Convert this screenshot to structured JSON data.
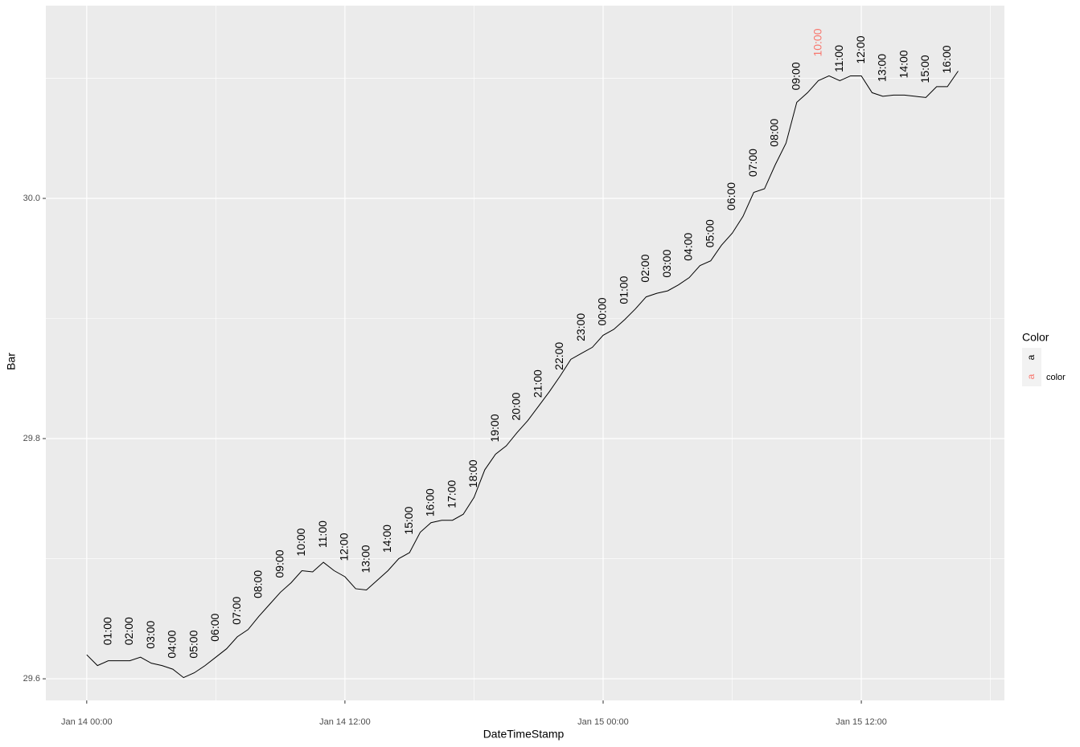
{
  "chart_data": {
    "type": "line",
    "x_label": "DateTimeStamp",
    "y_label": "Bar",
    "x": [
      "Jan 14 00:00",
      "Jan 14 00:30",
      "Jan 14 01:00",
      "Jan 14 01:30",
      "Jan 14 02:00",
      "Jan 14 02:30",
      "Jan 14 03:00",
      "Jan 14 03:30",
      "Jan 14 04:00",
      "Jan 14 04:30",
      "Jan 14 05:00",
      "Jan 14 05:30",
      "Jan 14 06:00",
      "Jan 14 06:30",
      "Jan 14 07:00",
      "Jan 14 07:30",
      "Jan 14 08:00",
      "Jan 14 08:30",
      "Jan 14 09:00",
      "Jan 14 09:30",
      "Jan 14 10:00",
      "Jan 14 10:30",
      "Jan 14 11:00",
      "Jan 14 11:30",
      "Jan 14 12:00",
      "Jan 14 12:30",
      "Jan 14 13:00",
      "Jan 14 13:30",
      "Jan 14 14:00",
      "Jan 14 14:30",
      "Jan 14 15:00",
      "Jan 14 15:30",
      "Jan 14 16:00",
      "Jan 14 16:30",
      "Jan 14 17:00",
      "Jan 14 17:30",
      "Jan 14 18:00",
      "Jan 14 18:30",
      "Jan 14 19:00",
      "Jan 14 19:30",
      "Jan 14 20:00",
      "Jan 14 20:30",
      "Jan 14 21:00",
      "Jan 14 21:30",
      "Jan 14 22:00",
      "Jan 14 22:30",
      "Jan 14 23:00",
      "Jan 14 23:30",
      "Jan 15 00:00",
      "Jan 15 00:30",
      "Jan 15 01:00",
      "Jan 15 01:30",
      "Jan 15 02:00",
      "Jan 15 02:30",
      "Jan 15 03:00",
      "Jan 15 03:30",
      "Jan 15 04:00",
      "Jan 15 04:30",
      "Jan 15 05:00",
      "Jan 15 05:30",
      "Jan 15 06:00",
      "Jan 15 06:30",
      "Jan 15 07:00",
      "Jan 15 07:30",
      "Jan 15 08:00",
      "Jan 15 08:30",
      "Jan 15 09:00",
      "Jan 15 09:30",
      "Jan 15 10:00",
      "Jan 15 10:30",
      "Jan 15 11:00",
      "Jan 15 11:30",
      "Jan 15 12:00",
      "Jan 15 12:30",
      "Jan 15 13:00",
      "Jan 15 13:30",
      "Jan 15 14:00",
      "Jan 15 14:30",
      "Jan 15 15:00",
      "Jan 15 15:30",
      "Jan 15 16:00",
      "Jan 15 16:30"
    ],
    "values": [
      29.62,
      29.611,
      29.615,
      29.615,
      29.615,
      29.618,
      29.613,
      29.611,
      29.608,
      29.601,
      29.605,
      29.611,
      29.618,
      29.625,
      29.635,
      29.641,
      29.652,
      29.662,
      29.672,
      29.68,
      29.69,
      29.689,
      29.697,
      29.69,
      29.685,
      29.675,
      29.674,
      29.682,
      29.69,
      29.7,
      29.705,
      29.722,
      29.73,
      29.732,
      29.732,
      29.737,
      29.751,
      29.774,
      29.787,
      29.794,
      29.805,
      29.815,
      29.827,
      29.839,
      29.852,
      29.866,
      29.871,
      29.876,
      29.886,
      29.891,
      29.899,
      29.908,
      29.918,
      29.921,
      29.923,
      29.928,
      29.934,
      29.944,
      29.948,
      29.961,
      29.971,
      29.985,
      30.005,
      30.008,
      30.028,
      30.046,
      30.08,
      30.088,
      30.098,
      30.102,
      30.098,
      30.102,
      30.102,
      30.088,
      30.085,
      30.086,
      30.086,
      30.085,
      30.084,
      30.093,
      30.093,
      30.106
    ],
    "color": "#000000",
    "xlim": [
      "Jan 13 22:06",
      "Jan 15 18:39"
    ],
    "xticks": [
      "Jan 14 00:00",
      "Jan 14 12:00",
      "Jan 15 00:00",
      "Jan 15 12:00"
    ],
    "ylim": [
      29.582,
      30.1605
    ],
    "yticks": [
      29.6,
      29.8,
      {
        "value": 30,
        "label": "30.0"
      }
    ],
    "grid": true,
    "annotations": [
      {
        "text": "01:00",
        "x": "Jan 14 01:00",
        "y": 29.628,
        "color": "#000000"
      },
      {
        "text": "02:00",
        "x": "Jan 14 02:00",
        "y": 29.628,
        "color": "#000000"
      },
      {
        "text": "03:00",
        "x": "Jan 14 03:00",
        "y": 29.625,
        "color": "#000000"
      },
      {
        "text": "04:00",
        "x": "Jan 14 04:00",
        "y": 29.617,
        "color": "#000000"
      },
      {
        "text": "05:00",
        "x": "Jan 14 05:00",
        "y": 29.617,
        "color": "#000000"
      },
      {
        "text": "06:00",
        "x": "Jan 14 06:00",
        "y": 29.631,
        "color": "#000000"
      },
      {
        "text": "07:00",
        "x": "Jan 14 07:00",
        "y": 29.645,
        "color": "#000000"
      },
      {
        "text": "08:00",
        "x": "Jan 14 08:00",
        "y": 29.667,
        "color": "#000000"
      },
      {
        "text": "09:00",
        "x": "Jan 14 09:00",
        "y": 29.684,
        "color": "#000000"
      },
      {
        "text": "10:00",
        "x": "Jan 14 10:00",
        "y": 29.702,
        "color": "#000000"
      },
      {
        "text": "11:00",
        "x": "Jan 14 11:00",
        "y": 29.709,
        "color": "#000000"
      },
      {
        "text": "12:00",
        "x": "Jan 14 12:00",
        "y": 29.698,
        "color": "#000000"
      },
      {
        "text": "13:00",
        "x": "Jan 14 13:00",
        "y": 29.688,
        "color": "#000000"
      },
      {
        "text": "14:00",
        "x": "Jan 14 14:00",
        "y": 29.705,
        "color": "#000000"
      },
      {
        "text": "15:00",
        "x": "Jan 14 15:00",
        "y": 29.72,
        "color": "#000000"
      },
      {
        "text": "16:00",
        "x": "Jan 14 16:00",
        "y": 29.735,
        "color": "#000000"
      },
      {
        "text": "17:00",
        "x": "Jan 14 17:00",
        "y": 29.742,
        "color": "#000000"
      },
      {
        "text": "18:00",
        "x": "Jan 14 18:00",
        "y": 29.759,
        "color": "#000000"
      },
      {
        "text": "19:00",
        "x": "Jan 14 19:00",
        "y": 29.797,
        "color": "#000000"
      },
      {
        "text": "20:00",
        "x": "Jan 14 20:00",
        "y": 29.815,
        "color": "#000000"
      },
      {
        "text": "21:00",
        "x": "Jan 14 21:00",
        "y": 29.834,
        "color": "#000000"
      },
      {
        "text": "22:00",
        "x": "Jan 14 22:00",
        "y": 29.857,
        "color": "#000000"
      },
      {
        "text": "23:00",
        "x": "Jan 14 23:00",
        "y": 29.881,
        "color": "#000000"
      },
      {
        "text": "00:00",
        "x": "Jan 15 00:00",
        "y": 29.894,
        "color": "#000000"
      },
      {
        "text": "01:00",
        "x": "Jan 15 01:00",
        "y": 29.912,
        "color": "#000000"
      },
      {
        "text": "02:00",
        "x": "Jan 15 02:00",
        "y": 29.93,
        "color": "#000000"
      },
      {
        "text": "03:00",
        "x": "Jan 15 03:00",
        "y": 29.934,
        "color": "#000000"
      },
      {
        "text": "04:00",
        "x": "Jan 15 04:00",
        "y": 29.948,
        "color": "#000000"
      },
      {
        "text": "05:00",
        "x": "Jan 15 05:00",
        "y": 29.959,
        "color": "#000000"
      },
      {
        "text": "06:00",
        "x": "Jan 15 06:00",
        "y": 29.99,
        "color": "#000000"
      },
      {
        "text": "07:00",
        "x": "Jan 15 07:00",
        "y": 30.018,
        "color": "#000000"
      },
      {
        "text": "08:00",
        "x": "Jan 15 08:00",
        "y": 30.043,
        "color": "#000000"
      },
      {
        "text": "09:00",
        "x": "Jan 15 09:00",
        "y": 30.09,
        "color": "#000000"
      },
      {
        "text": "10:00",
        "x": "Jan 15 10:00",
        "y": 30.118,
        "color": "#F8766D"
      },
      {
        "text": "11:00",
        "x": "Jan 15 11:00",
        "y": 30.105,
        "color": "#000000"
      },
      {
        "text": "12:00",
        "x": "Jan 15 12:00",
        "y": 30.112,
        "color": "#000000"
      },
      {
        "text": "13:00",
        "x": "Jan 15 13:00",
        "y": 30.097,
        "color": "#000000"
      },
      {
        "text": "14:00",
        "x": "Jan 15 14:00",
        "y": 30.1,
        "color": "#000000"
      },
      {
        "text": "15:00",
        "x": "Jan 15 15:00",
        "y": 30.096,
        "color": "#000000"
      },
      {
        "text": "16:00",
        "x": "Jan 15 16:00",
        "y": 30.104,
        "color": "#000000"
      }
    ],
    "legend": {
      "title": "Color",
      "keys": [
        {
          "text": "a",
          "color": "#000000"
        },
        {
          "text": "a",
          "color": "#F8766D"
        }
      ],
      "label": "color"
    }
  }
}
